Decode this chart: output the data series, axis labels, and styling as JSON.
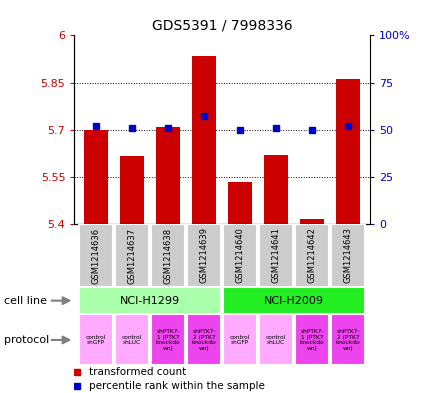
{
  "title": "GDS5391 / 7998336",
  "samples": [
    "GSM1214636",
    "GSM1214637",
    "GSM1214638",
    "GSM1214639",
    "GSM1214640",
    "GSM1214641",
    "GSM1214642",
    "GSM1214643"
  ],
  "transformed_counts": [
    5.7,
    5.615,
    5.71,
    5.935,
    5.535,
    5.62,
    5.415,
    5.86
  ],
  "percentile_ranks": [
    52,
    51,
    51,
    57,
    50,
    51,
    50,
    52
  ],
  "ylim_left": [
    5.4,
    6.0
  ],
  "yticks_left": [
    5.4,
    5.55,
    5.7,
    5.85,
    6.0
  ],
  "yticklabels_left": [
    "5.4",
    "5.55",
    "5.7",
    "5.85",
    "6"
  ],
  "ylim_right": [
    0,
    100
  ],
  "yticks_right": [
    0,
    25,
    50,
    75,
    100
  ],
  "yticklabels_right": [
    "0",
    "25",
    "50",
    "75",
    "100%"
  ],
  "bar_color": "#cc0000",
  "dot_color": "#0000cc",
  "bar_bottom": 5.4,
  "bar_width": 0.65,
  "cell_line_groups": [
    {
      "label": "NCI-H1299",
      "start": 0,
      "end": 3,
      "color": "#aaffaa"
    },
    {
      "label": "NCI-H2009",
      "start": 4,
      "end": 7,
      "color": "#22ee22"
    }
  ],
  "protocols": [
    {
      "label": "control\nshGFP",
      "color": "#ffaaff"
    },
    {
      "label": "control\nshLUC",
      "color": "#ffaaff"
    },
    {
      "label": "shPTK7-\n1 (PTK7\nknockdo\nwn)",
      "color": "#ee44ee"
    },
    {
      "label": "shPTK7-\n2 (PTK7\nknockdo\nwn)",
      "color": "#ee44ee"
    },
    {
      "label": "control\nshGFP",
      "color": "#ffaaff"
    },
    {
      "label": "control\nshLUC",
      "color": "#ffaaff"
    },
    {
      "label": "shPTK7-\n1 (PTK7\nknockdo\nwn)",
      "color": "#ee44ee"
    },
    {
      "label": "shPTK7-\n2 (PTK7\nknockdo\nwn)",
      "color": "#ee44ee"
    }
  ],
  "left_axis_color": "#cc0000",
  "right_axis_color": "#0000cc",
  "sample_box_color": "#cccccc",
  "legend_red_label": "transformed count",
  "legend_blue_label": "percentile rank within the sample",
  "cell_line_label": "cell line",
  "protocol_label": "protocol"
}
